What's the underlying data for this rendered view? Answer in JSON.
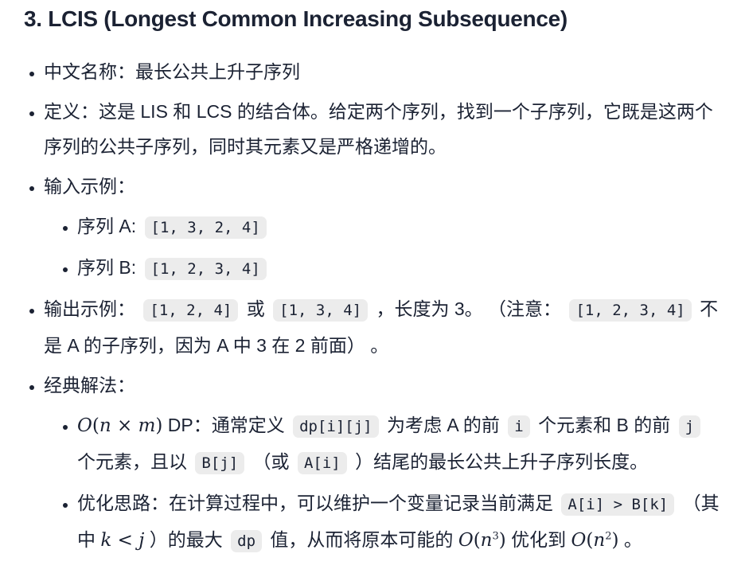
{
  "colors": {
    "text": "#1b2233",
    "code_background": "#ececec",
    "page_background": "#ffffff"
  },
  "heading": "3. LCIS (Longest Common Increasing Subsequence)",
  "list": [
    {
      "segments": [
        {
          "t": "text",
          "v": "中文名称：最长公共上升子序列"
        }
      ]
    },
    {
      "segments": [
        {
          "t": "text",
          "v": "定义：这是 LIS 和 LCS 的结合体。给定两个序列，找到一个子序列，它既是这两个序列的公共子序列，同时其元素又是严格递增的。"
        }
      ]
    },
    {
      "segments": [
        {
          "t": "text",
          "v": "输入示例："
        }
      ],
      "children": [
        {
          "segments": [
            {
              "t": "text",
              "v": "序列 A: "
            },
            {
              "t": "code",
              "v": "[1, 3, 2, 4]"
            }
          ]
        },
        {
          "segments": [
            {
              "t": "text",
              "v": "序列 B: "
            },
            {
              "t": "code",
              "v": "[1, 2, 3, 4]"
            }
          ]
        }
      ]
    },
    {
      "segments": [
        {
          "t": "text",
          "v": "输出示例： "
        },
        {
          "t": "code",
          "v": "[1, 2, 4]"
        },
        {
          "t": "text",
          "v": " 或 "
        },
        {
          "t": "code",
          "v": "[1, 3, 4]"
        },
        {
          "t": "text",
          "v": " ，长度为 3。 （注意： "
        },
        {
          "t": "code",
          "v": "[1, 2, 3, 4]"
        },
        {
          "t": "text",
          "v": " 不是 A 的子序列，因为 A 中 3 在 2 前面） 。"
        }
      ]
    },
    {
      "segments": [
        {
          "t": "text",
          "v": "经典解法："
        }
      ],
      "children": [
        {
          "segments": [
            {
              "t": "math",
              "tokens": [
                {
                  "t": "i",
                  "v": "O"
                },
                {
                  "t": "p",
                  "v": "("
                },
                {
                  "t": "i",
                  "v": "n"
                },
                {
                  "t": "p",
                  "v": " × "
                },
                {
                  "t": "i",
                  "v": "m"
                },
                {
                  "t": "p",
                  "v": ")"
                }
              ]
            },
            {
              "t": "text",
              "v": " DP：通常定义 "
            },
            {
              "t": "code",
              "v": "dp[i][j]"
            },
            {
              "t": "text",
              "v": " 为考虑 A 的前 "
            },
            {
              "t": "code",
              "v": "i"
            },
            {
              "t": "text",
              "v": " 个元素和 B 的前 "
            },
            {
              "t": "code",
              "v": "j"
            },
            {
              "t": "text",
              "v": " 个元素，且以 "
            },
            {
              "t": "code",
              "v": "B[j]"
            },
            {
              "t": "text",
              "v": " （或 "
            },
            {
              "t": "code",
              "v": "A[i]"
            },
            {
              "t": "text",
              "v": " ）结尾的最长公共上升子序列长度。"
            }
          ]
        },
        {
          "segments": [
            {
              "t": "text",
              "v": "优化思路：在计算过程中，可以维护一个变量记录当前满足 "
            },
            {
              "t": "code",
              "v": "A[i] > B[k]"
            },
            {
              "t": "text",
              "v": " （其中 "
            },
            {
              "t": "math",
              "tokens": [
                {
                  "t": "i",
                  "v": "k"
                },
                {
                  "t": "p",
                  "v": " < "
                },
                {
                  "t": "i",
                  "v": "j"
                }
              ]
            },
            {
              "t": "text",
              "v": " ）的最大 "
            },
            {
              "t": "code",
              "v": "dp"
            },
            {
              "t": "text",
              "v": " 值，从而将原本可能的 "
            },
            {
              "t": "math",
              "tokens": [
                {
                  "t": "i",
                  "v": "O"
                },
                {
                  "t": "p",
                  "v": "("
                },
                {
                  "t": "i",
                  "v": "n"
                },
                {
                  "t": "sup",
                  "v": "3"
                },
                {
                  "t": "p",
                  "v": ")"
                }
              ]
            },
            {
              "t": "text",
              "v": " 优化到 "
            },
            {
              "t": "math",
              "tokens": [
                {
                  "t": "i",
                  "v": "O"
                },
                {
                  "t": "p",
                  "v": "("
                },
                {
                  "t": "i",
                  "v": "n"
                },
                {
                  "t": "sup",
                  "v": "2"
                },
                {
                  "t": "p",
                  "v": ")"
                }
              ]
            },
            {
              "t": "text",
              "v": " 。"
            }
          ]
        }
      ]
    }
  ]
}
